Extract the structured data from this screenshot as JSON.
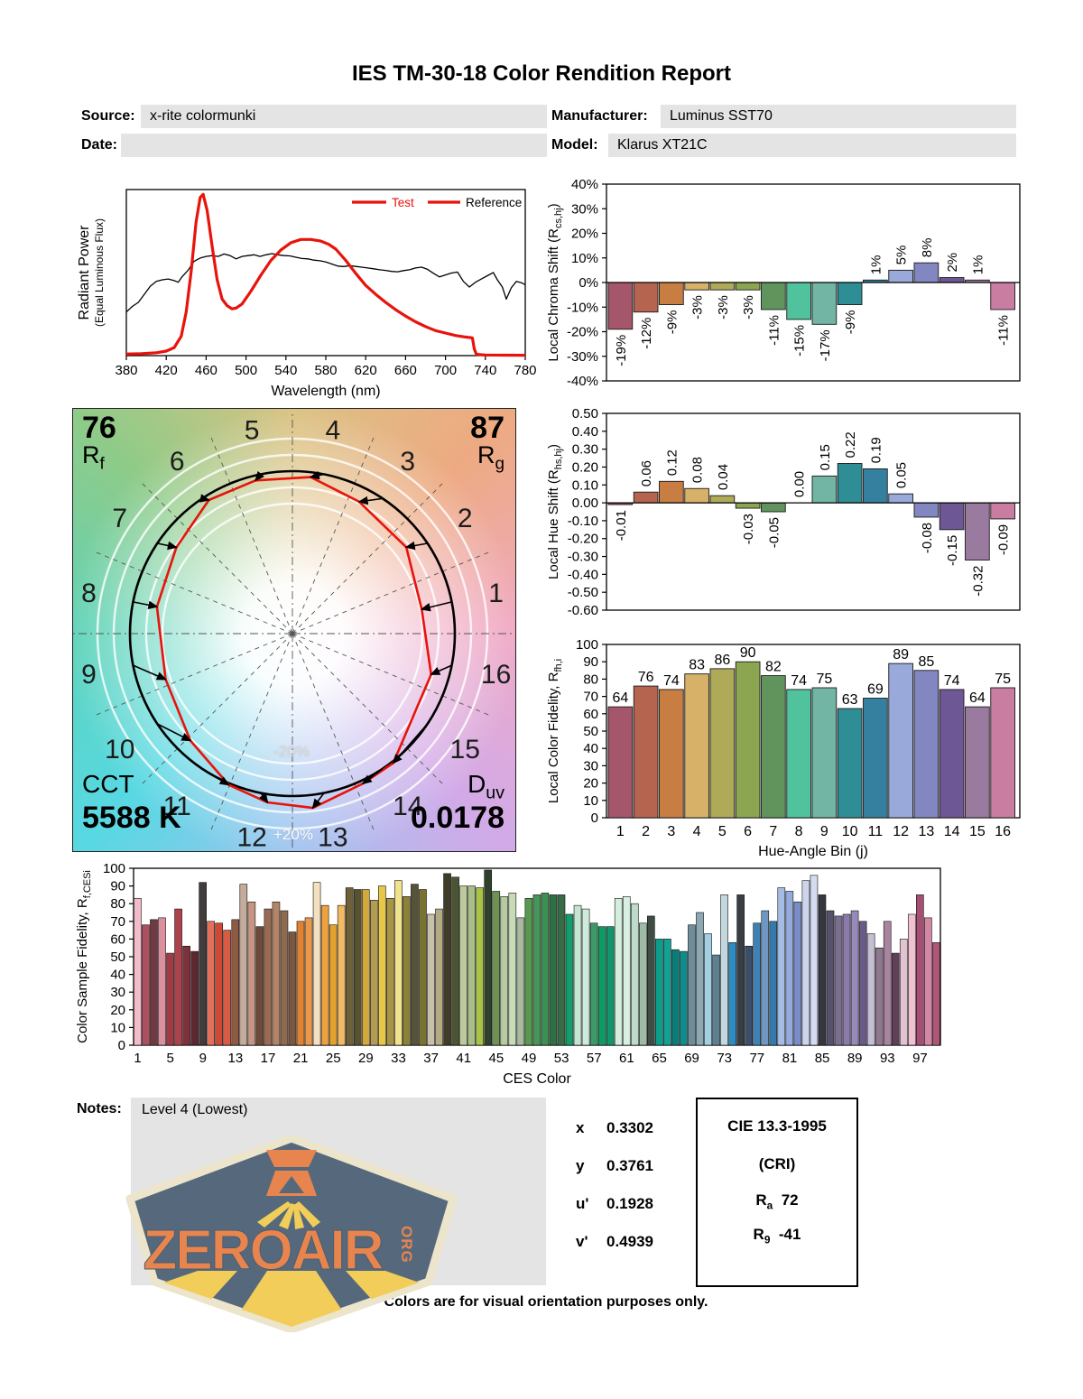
{
  "report": {
    "title": "IES TM-30-18 Color Rendition Report",
    "fields": {
      "source_label": "Source:",
      "source": "x-rite colormunki",
      "date_label": "Date:",
      "date": "",
      "manufacturer_label": "Manufacturer:",
      "manufacturer": "Luminus SST70",
      "model_label": "Model:",
      "model": "Klarus XT21C"
    },
    "notes_label": "Notes:",
    "notes": "Level 4 (Lowest)",
    "footer": "Colors are for visual orientation purposes only.",
    "chromaticity": [
      {
        "label": "x",
        "value": "0.3302"
      },
      {
        "label": "y",
        "value": "0.3761"
      },
      {
        "label": "u'",
        "value": "0.1928"
      },
      {
        "label": "v'",
        "value": "0.4939"
      }
    ],
    "cri_box": {
      "title": "CIE 13.3-1995",
      "subtitle": "(CRI)",
      "rows": [
        {
          "label": "R",
          "sub": "a",
          "value": "72"
        },
        {
          "label": "R",
          "sub": "9",
          "value": "-41"
        }
      ]
    },
    "logo": {
      "text": "ZEROAIR",
      "suffix": "ORG"
    }
  },
  "cvg": {
    "rf_value": "76",
    "rf_label": "R",
    "rf_sub": "f",
    "rg_value": "87",
    "rg_label": "R",
    "rg_sub": "g",
    "cct_label": "CCT",
    "cct_value": "5588 K",
    "duv_label": "D",
    "duv_sub": "uv",
    "duv_value": "0.0178",
    "ring_outer": "+20%",
    "ring_inner": "-20%",
    "bins": [
      "1",
      "2",
      "3",
      "4",
      "5",
      "6",
      "7",
      "8",
      "9",
      "10",
      "11",
      "12",
      "13",
      "14",
      "15",
      "16"
    ]
  },
  "bin_colors": [
    "#a5566a",
    "#b5654f",
    "#c87d42",
    "#d8b169",
    "#aeaa57",
    "#8ba551",
    "#61945d",
    "#50c29c",
    "#72b5a5",
    "#2f8e95",
    "#36809f",
    "#98a9da",
    "#8287c1",
    "#6d5795",
    "#9b7aa0",
    "#c87da1"
  ],
  "ces_colors": [
    "#f2bccb",
    "#ad4f5e",
    "#713a43",
    "#dc8f9f",
    "#a23a46",
    "#ab424c",
    "#7e313a",
    "#5e2830",
    "#413b3b",
    "#e4705b",
    "#ce4836",
    "#da5b44",
    "#8e5a43",
    "#c3ac9c",
    "#c79584",
    "#6e4a39",
    "#9a6b53",
    "#b28468",
    "#8e6a50",
    "#7b573f",
    "#e08232",
    "#ea984c",
    "#f2e0bf",
    "#eda23e",
    "#e3a22e",
    "#f3ba62",
    "#6e6038",
    "#585230",
    "#d3a93e",
    "#b29b52",
    "#e7c748",
    "#a79541",
    "#f1e28c",
    "#8b8138",
    "#55533b",
    "#797331",
    "#c7c1a9",
    "#b3ab83",
    "#3f3d27",
    "#4b5531",
    "#bbc99d",
    "#a7bf87",
    "#a9c345",
    "#30412b",
    "#6f9253",
    "#b7cba3",
    "#c7dbb7",
    "#a9b9a1",
    "#57994f",
    "#48955b",
    "#3e8f53",
    "#306f45",
    "#376c47",
    "#139e6c",
    "#c3e5d1",
    "#cdeadb",
    "#3e9969",
    "#0f9b63",
    "#11976b",
    "#d3eedd",
    "#d7f0e3",
    "#bddbc9",
    "#9dbba7",
    "#3d4d43",
    "#0d9d8d",
    "#11a195",
    "#0b7d77",
    "#0d8d8b",
    "#6d8d99",
    "#8da7b3",
    "#a1cfe3",
    "#5f8091",
    "#c3d7df",
    "#2d8dc3",
    "#393e45",
    "#3b4f6b",
    "#3d81b5",
    "#6f97c1",
    "#3579ad",
    "#a5bde5",
    "#95abdd",
    "#7b8dc9",
    "#cdd5ed",
    "#d5dbf1",
    "#34373f",
    "#57516b",
    "#7b6f8f",
    "#8b7bab",
    "#9789b9",
    "#6a5a88",
    "#c6bfd4",
    "#90798f",
    "#a9849e",
    "#5f4058",
    "#e3c3d2",
    "#eec2d0",
    "#a74e73",
    "#d686a5",
    "#b15676"
  ],
  "chart_data": [
    {
      "id": "spd",
      "type": "line",
      "xlabel": "Wavelength (nm)",
      "ylabel": "Radiant Power",
      "ylabel2": "(Equal Luminous Flux)",
      "xlim": [
        380,
        780
      ],
      "ylim": [
        0,
        1.05
      ],
      "grid": false,
      "xticks": [
        380,
        420,
        460,
        500,
        540,
        580,
        620,
        660,
        700,
        740,
        780
      ],
      "legend_position": "top-right",
      "legend": [
        {
          "label": "Test",
          "line_color": "#e8130c",
          "text_color": "#e8130c"
        },
        {
          "label": "Reference",
          "line_color": "#e8130c",
          "text_color": "#000000"
        }
      ],
      "series": [
        {
          "name": "Test",
          "color": "#e8130c",
          "width": 3.2,
          "points": [
            [
              380,
              0.01
            ],
            [
              395,
              0.012
            ],
            [
              410,
              0.018
            ],
            [
              420,
              0.028
            ],
            [
              428,
              0.05
            ],
            [
              435,
              0.12
            ],
            [
              440,
              0.27
            ],
            [
              445,
              0.52
            ],
            [
              450,
              0.83
            ],
            [
              454,
              0.98
            ],
            [
              457,
              1.0
            ],
            [
              461,
              0.9
            ],
            [
              466,
              0.68
            ],
            [
              471,
              0.47
            ],
            [
              476,
              0.35
            ],
            [
              481,
              0.31
            ],
            [
              486,
              0.29
            ],
            [
              490,
              0.295
            ],
            [
              496,
              0.32
            ],
            [
              505,
              0.4
            ],
            [
              515,
              0.5
            ],
            [
              525,
              0.59
            ],
            [
              535,
              0.655
            ],
            [
              545,
              0.7
            ],
            [
              555,
              0.72
            ],
            [
              565,
              0.72
            ],
            [
              575,
              0.71
            ],
            [
              583,
              0.69
            ],
            [
              590,
              0.66
            ],
            [
              600,
              0.59
            ],
            [
              610,
              0.51
            ],
            [
              620,
              0.435
            ],
            [
              630,
              0.38
            ],
            [
              640,
              0.33
            ],
            [
              650,
              0.285
            ],
            [
              660,
              0.245
            ],
            [
              670,
              0.21
            ],
            [
              680,
              0.18
            ],
            [
              690,
              0.155
            ],
            [
              700,
              0.14
            ],
            [
              710,
              0.125
            ],
            [
              720,
              0.115
            ],
            [
              727,
              0.11
            ],
            [
              729,
              0.04
            ],
            [
              731,
              0.008
            ],
            [
              740,
              0.004
            ],
            [
              760,
              0.003
            ],
            [
              780,
              0.002
            ]
          ]
        },
        {
          "name": "Reference",
          "color": "#000000",
          "width": 1.3,
          "points": [
            [
              380,
              0.27
            ],
            [
              386,
              0.305
            ],
            [
              392,
              0.33
            ],
            [
              398,
              0.38
            ],
            [
              404,
              0.43
            ],
            [
              410,
              0.46
            ],
            [
              416,
              0.47
            ],
            [
              422,
              0.475
            ],
            [
              428,
              0.465
            ],
            [
              432,
              0.455
            ],
            [
              436,
              0.49
            ],
            [
              442,
              0.53
            ],
            [
              448,
              0.585
            ],
            [
              454,
              0.605
            ],
            [
              460,
              0.615
            ],
            [
              466,
              0.62
            ],
            [
              472,
              0.615
            ],
            [
              478,
              0.63
            ],
            [
              484,
              0.62
            ],
            [
              490,
              0.6
            ],
            [
              496,
              0.615
            ],
            [
              502,
              0.62
            ],
            [
              508,
              0.625
            ],
            [
              514,
              0.615
            ],
            [
              520,
              0.625
            ],
            [
              526,
              0.632
            ],
            [
              532,
              0.625
            ],
            [
              538,
              0.62
            ],
            [
              544,
              0.618
            ],
            [
              550,
              0.61
            ],
            [
              556,
              0.602
            ],
            [
              562,
              0.6
            ],
            [
              568,
              0.592
            ],
            [
              574,
              0.588
            ],
            [
              580,
              0.58
            ],
            [
              586,
              0.568
            ],
            [
              592,
              0.555
            ],
            [
              598,
              0.552
            ],
            [
              604,
              0.558
            ],
            [
              610,
              0.553
            ],
            [
              616,
              0.548
            ],
            [
              622,
              0.543
            ],
            [
              628,
              0.538
            ],
            [
              634,
              0.532
            ],
            [
              640,
              0.528
            ],
            [
              646,
              0.522
            ],
            [
              652,
              0.52
            ],
            [
              658,
              0.527
            ],
            [
              664,
              0.532
            ],
            [
              670,
              0.543
            ],
            [
              676,
              0.548
            ],
            [
              682,
              0.535
            ],
            [
              688,
              0.51
            ],
            [
              694,
              0.488
            ],
            [
              700,
              0.5
            ],
            [
              706,
              0.512
            ],
            [
              712,
              0.518
            ],
            [
              718,
              0.46
            ],
            [
              724,
              0.425
            ],
            [
              730,
              0.455
            ],
            [
              736,
              0.475
            ],
            [
              742,
              0.495
            ],
            [
              748,
              0.515
            ],
            [
              752,
              0.47
            ],
            [
              757,
              0.425
            ],
            [
              761,
              0.35
            ],
            [
              766,
              0.42
            ],
            [
              771,
              0.46
            ],
            [
              776,
              0.452
            ],
            [
              780,
              0.44
            ]
          ]
        }
      ]
    },
    {
      "id": "chroma",
      "type": "bar",
      "ylabel_parts": [
        "Local Chroma Shift (R",
        "cs,hj",
        ")"
      ],
      "ylim": [
        -40,
        40
      ],
      "ytick_step": 10,
      "yticks": [
        "40%",
        "30%",
        "20%",
        "10%",
        "0%",
        "-10%",
        "-20%",
        "-30%",
        "-40%"
      ],
      "values": [
        -19,
        -12,
        -9,
        -3,
        -3,
        -3,
        -11,
        -15,
        -17,
        -9,
        1,
        5,
        8,
        2,
        1,
        -11
      ],
      "labels": [
        "-19%",
        "-12%",
        "-9%",
        "-3%",
        "-3%",
        "-3%",
        "-11%",
        "-15%",
        "-17%",
        "-9%",
        "1%",
        "5%",
        "8%",
        "2%",
        "1%",
        "-11%"
      ]
    },
    {
      "id": "hue",
      "type": "bar",
      "ylabel_parts": [
        "Local Hue Shift (R",
        "hs,hj",
        ")"
      ],
      "ylim": [
        -0.6,
        0.5
      ],
      "ytick_step": 0.1,
      "yticks": [
        "0.50",
        "0.40",
        "0.30",
        "0.20",
        "0.10",
        "0.00",
        "-0.10",
        "-0.20",
        "-0.30",
        "-0.40",
        "-0.50",
        "-0.60"
      ],
      "values": [
        -0.01,
        0.06,
        0.12,
        0.08,
        0.04,
        -0.03,
        -0.05,
        0.0,
        0.15,
        0.22,
        0.19,
        0.05,
        -0.08,
        -0.15,
        -0.32,
        -0.09
      ],
      "labels": [
        "-0.01",
        "0.06",
        "0.12",
        "0.08",
        "0.04",
        "-0.03",
        "-0.05",
        "0.00",
        "0.15",
        "0.22",
        "0.19",
        "0.05",
        "-0.08",
        "-0.15",
        "-0.32",
        "-0.09"
      ]
    },
    {
      "id": "fidelity",
      "type": "bar",
      "ylabel_parts": [
        "Local Color Fidelity, R",
        "fh,i",
        ""
      ],
      "xlabel": "Hue-Angle Bin (j)",
      "ylim": [
        0,
        100
      ],
      "ytick_step": 10,
      "yticks": [
        "100",
        "90",
        "80",
        "70",
        "60",
        "50",
        "40",
        "30",
        "20",
        "10",
        "0"
      ],
      "categories": [
        "1",
        "2",
        "3",
        "4",
        "5",
        "6",
        "7",
        "8",
        "9",
        "10",
        "11",
        "12",
        "13",
        "14",
        "15",
        "16"
      ],
      "values": [
        64,
        76,
        74,
        83,
        86,
        90,
        82,
        74,
        75,
        63,
        69,
        89,
        85,
        74,
        64,
        75
      ],
      "labels": [
        "64",
        "76",
        "74",
        "83",
        "86",
        "90",
        "82",
        "74",
        "75",
        "63",
        "69",
        "89",
        "85",
        "74",
        "64",
        "75"
      ]
    },
    {
      "id": "ces",
      "type": "bar",
      "ylabel_parts": [
        "Color Sample Fidelity, R",
        "f,CESi",
        ""
      ],
      "xlabel": "CES Color",
      "ylim": [
        0,
        100
      ],
      "ytick_step": 10,
      "yticks": [
        "100",
        "90",
        "80",
        "70",
        "60",
        "50",
        "40",
        "30",
        "20",
        "10",
        "0"
      ],
      "xticks": [
        1,
        5,
        9,
        13,
        17,
        21,
        25,
        29,
        33,
        37,
        41,
        45,
        49,
        53,
        57,
        61,
        65,
        69,
        73,
        77,
        81,
        85,
        89,
        93,
        97
      ],
      "values": [
        83,
        68,
        71,
        72,
        52,
        77,
        56,
        53,
        92,
        70,
        69,
        65,
        71,
        91,
        81,
        67,
        77,
        81,
        76,
        64,
        70,
        72,
        92,
        79,
        68,
        79,
        89,
        88,
        88,
        82,
        90,
        83,
        93,
        84,
        91,
        88,
        74,
        77,
        97,
        95,
        90,
        90,
        89,
        99,
        87,
        84,
        86,
        72,
        83,
        85,
        86,
        85,
        85,
        74,
        79,
        77,
        69,
        67,
        67,
        83,
        84,
        80,
        69,
        73,
        60,
        60,
        54,
        53,
        68,
        75,
        63,
        51,
        85,
        58,
        85,
        56,
        69,
        76,
        70,
        89,
        87,
        81,
        93,
        96,
        85,
        76,
        73,
        74,
        76,
        70,
        63,
        55,
        70,
        52,
        60,
        74,
        85,
        72,
        58
      ]
    }
  ]
}
